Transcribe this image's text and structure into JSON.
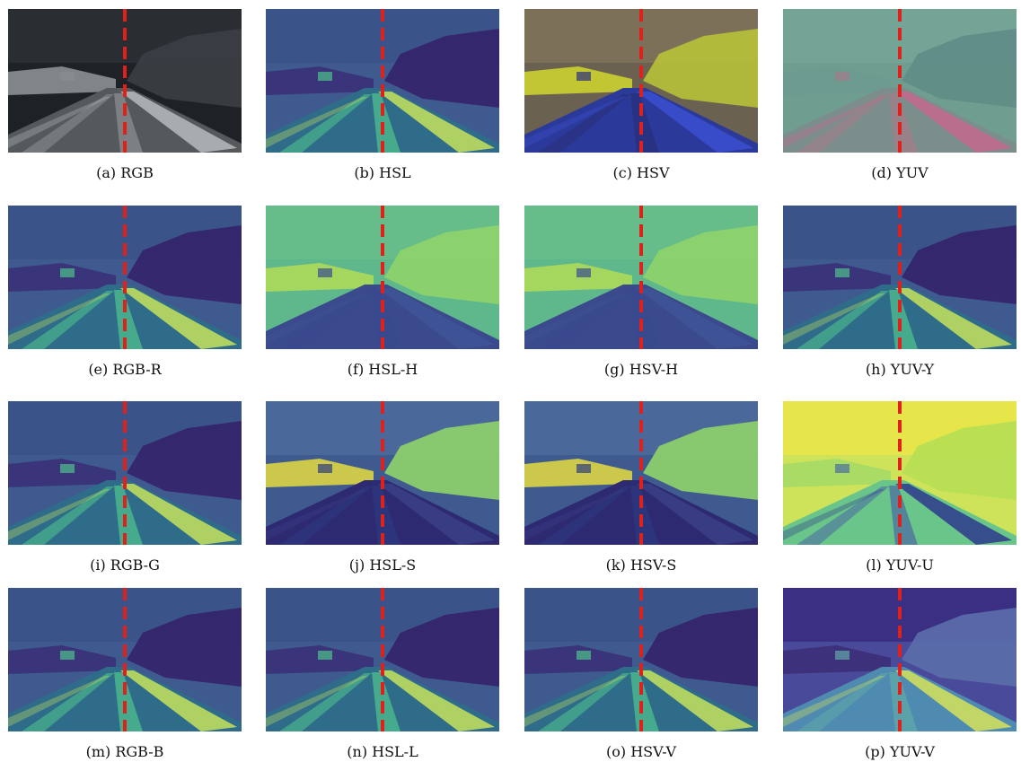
{
  "figure": {
    "panels": [
      {
        "caption": "(a) RGB",
        "kind": "rgb"
      },
      {
        "caption": "(b) HSL",
        "kind": "lum"
      },
      {
        "caption": "(c) HSV",
        "kind": "hsv"
      },
      {
        "caption": "(d) YUV",
        "kind": "yuv"
      },
      {
        "caption": "(e) RGB-R",
        "kind": "lum"
      },
      {
        "caption": "(f) HSL-H",
        "kind": "hue"
      },
      {
        "caption": "(g) HSV-H",
        "kind": "hue"
      },
      {
        "caption": "(h) YUV-Y",
        "kind": "lum"
      },
      {
        "caption": "(i) RGB-G",
        "kind": "lum"
      },
      {
        "caption": "(j) HSL-S",
        "kind": "sat"
      },
      {
        "caption": "(k) HSV-S",
        "kind": "sat"
      },
      {
        "caption": "(l) YUV-U",
        "kind": "u"
      },
      {
        "caption": "(m) RGB-B",
        "kind": "lum"
      },
      {
        "caption": "(n) HSL-L",
        "kind": "lum"
      },
      {
        "caption": "(o) HSV-V",
        "kind": "lum"
      },
      {
        "caption": "(p) YUV-V",
        "kind": "v"
      }
    ],
    "divider_color": "#e0201a"
  }
}
